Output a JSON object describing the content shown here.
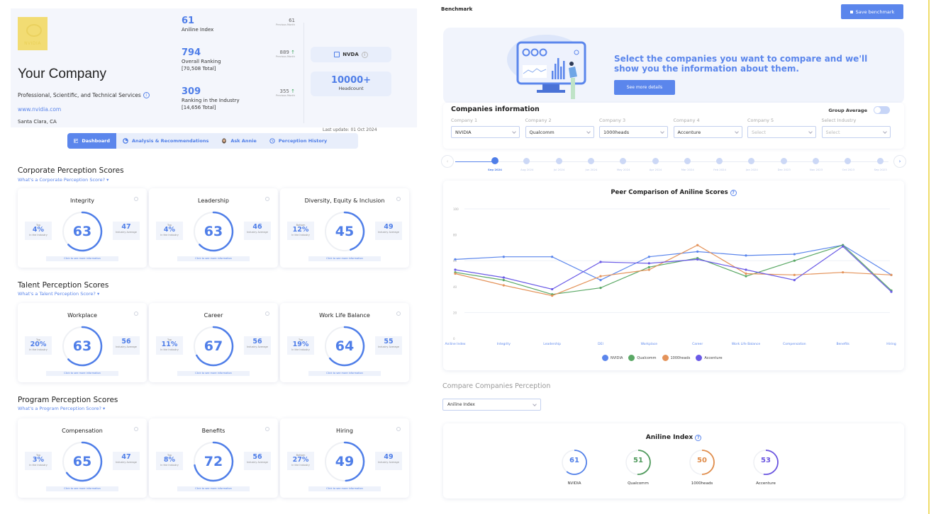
{
  "company": {
    "logo_text": "NVIDIA",
    "name": "Your Company",
    "industry": "Professional, Scientific, and Technical Services",
    "website": "www.nvidia.com",
    "location": "Santa Clara, CA",
    "metrics": [
      {
        "value": "61",
        "label": "Aniline Index",
        "sub": "",
        "prev": "61",
        "trend": "",
        "prev_label": "Previous Month"
      },
      {
        "value": "794",
        "label": "Overall Ranking",
        "sub": "[70,508 Total]",
        "prev": "889",
        "trend": "↑",
        "prev_label": "Previous Month"
      },
      {
        "value": "309",
        "label": "Ranking in the Industry",
        "sub": "[14,656 Total]",
        "prev": "355",
        "trend": "↑",
        "prev_label": "Previous Month"
      }
    ],
    "ticker": "NVDA",
    "headcount_value": "10000+",
    "headcount_label": "Headcount",
    "last_update": "Last update: 01 Oct 2024"
  },
  "tabs": [
    {
      "label": "Dashboard",
      "icon": "dashboard-icon",
      "active": true
    },
    {
      "label": "Analysis & Recommendations",
      "icon": "pie-chart-icon",
      "active": false
    },
    {
      "label": "Ask Annie",
      "icon": "avatar-icon",
      "active": false
    },
    {
      "label": "Perception History",
      "icon": "history-icon",
      "active": false
    }
  ],
  "sections": [
    {
      "title": "Corporate Perception Scores",
      "link": "What's a Corporate Perception Score? ▾",
      "cards": [
        {
          "title": "Integrity",
          "score": 63,
          "rank_label": "Top",
          "rank": "4%",
          "rank_sub": "In the Industry",
          "avg": "47",
          "avg_label": "Industry Average",
          "more": "Click to see more information"
        },
        {
          "title": "Leadership",
          "score": 63,
          "rank_label": "Top",
          "rank": "4%",
          "rank_sub": "In the Industry",
          "avg": "46",
          "avg_label": "Industry Average",
          "more": "Click to see more information"
        },
        {
          "title": "Diversity, Equity & Inclusion",
          "score": 45,
          "rank_label": "Bottom",
          "rank": "12%",
          "rank_sub": "In the Industry",
          "avg": "49",
          "avg_label": "Industry Average",
          "more": "Click to see more information"
        }
      ]
    },
    {
      "title": "Talent Perception Scores",
      "link": "What's a Talent Perception Score? ▾",
      "cards": [
        {
          "title": "Workplace",
          "score": 63,
          "rank_label": "Top",
          "rank": "20%",
          "rank_sub": "In the Industry",
          "avg": "56",
          "avg_label": "Industry Average",
          "more": "Click to see more information"
        },
        {
          "title": "Career",
          "score": 67,
          "rank_label": "Top",
          "rank": "11%",
          "rank_sub": "In the Industry",
          "avg": "56",
          "avg_label": "Industry Average",
          "more": "Click to see more information"
        },
        {
          "title": "Work Life Balance",
          "score": 64,
          "rank_label": "Top",
          "rank": "19%",
          "rank_sub": "In the Industry",
          "avg": "55",
          "avg_label": "Industry Average",
          "more": "Click to see more information"
        }
      ]
    },
    {
      "title": "Program Perception Scores",
      "link": "What's a Program Perception Score? ▾",
      "cards": [
        {
          "title": "Compensation",
          "score": 65,
          "rank_label": "Top",
          "rank": "3%",
          "rank_sub": "In the Industry",
          "avg": "47",
          "avg_label": "Industry Average",
          "more": "Click to see more information"
        },
        {
          "title": "Benefits",
          "score": 72,
          "rank_label": "Top",
          "rank": "8%",
          "rank_sub": "In the Industry",
          "avg": "56",
          "avg_label": "Industry Average",
          "more": "Click to see more information"
        },
        {
          "title": "Hiring",
          "score": 49,
          "rank_label": "Bottom",
          "rank": "27%",
          "rank_sub": "In the Industry",
          "avg": "49",
          "avg_label": "Industry Average",
          "more": "Click to see more information"
        }
      ]
    }
  ],
  "benchmark": {
    "title": "Benchmark",
    "save_label": "Save benchmark",
    "hero_title": "Select the companies you want to compare and we'll show you the information about them.",
    "hero_button": "See more details",
    "companies_title": "Companies information",
    "group_average_label": "Group Average",
    "selects": [
      {
        "label": "Company 1",
        "value": "NVIDIA",
        "placeholder": false
      },
      {
        "label": "Company 2",
        "value": "Qualcomm",
        "placeholder": false
      },
      {
        "label": "Company 3",
        "value": "1000heads",
        "placeholder": false
      },
      {
        "label": "Company 4",
        "value": "Accenture",
        "placeholder": false
      },
      {
        "label": "Company 5",
        "value": "Select",
        "placeholder": true
      },
      {
        "label": "Select Industry",
        "value": "Select",
        "placeholder": true
      }
    ],
    "timeline": [
      "Sep 2024",
      "Aug 2024",
      "Jul 2024",
      "Jun 2024",
      "May 2024",
      "Apr 2024",
      "Mar 2024",
      "Feb 2024",
      "Jan 2024",
      "Dec 2023",
      "Nov 2023",
      "Oct 2023",
      "Sep 2023"
    ],
    "timeline_prev": "‹",
    "timeline_next": "›",
    "compare_title": "Compare Companies Perception",
    "compare_select": "Aniline Index",
    "aniline_title": "Aniline Index",
    "aniline_scores": [
      {
        "name": "NVIDIA",
        "value": 61,
        "color": "#4f7ee8"
      },
      {
        "name": "Qualcomm",
        "value": 51,
        "color": "#4f9a5c"
      },
      {
        "name": "1000heads",
        "value": 50,
        "color": "#e08c4a"
      },
      {
        "name": "Accenture",
        "value": 53,
        "color": "#6a55e0"
      }
    ]
  },
  "chart_data": {
    "type": "line",
    "title": "Peer Comparison of Aniline Scores",
    "categories": [
      "Aniline Index",
      "Integrity",
      "Leadership",
      "DEI",
      "Workplace",
      "Career",
      "Work Life Balance",
      "Compensation",
      "Benefits",
      "Hiring"
    ],
    "series": [
      {
        "name": "NVIDIA",
        "color": "#5b86ec",
        "values": [
          61,
          63,
          63,
          45,
          63,
          67,
          64,
          65,
          72,
          49
        ]
      },
      {
        "name": "Qualcomm",
        "color": "#5aa865",
        "values": [
          51,
          45,
          34,
          39,
          55,
          62,
          48,
          60,
          72,
          37
        ]
      },
      {
        "name": "1000heads",
        "color": "#e4935a",
        "values": [
          50,
          41,
          33,
          48,
          53,
          72,
          50,
          49,
          51,
          49
        ]
      },
      {
        "name": "Accenture",
        "color": "#6a5ae6",
        "values": [
          53,
          47,
          38,
          59,
          58,
          61,
          53,
          45,
          71,
          36
        ]
      }
    ],
    "xlabel": "",
    "ylabel": "",
    "yticks": [
      0,
      20,
      40,
      60,
      80,
      100
    ],
    "ylim": [
      0,
      100
    ],
    "grid": true,
    "legend_position": "bottom"
  }
}
